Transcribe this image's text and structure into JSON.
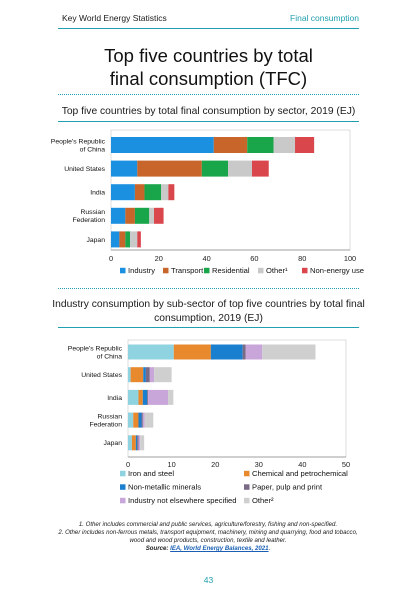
{
  "header": {
    "left": "Key World Energy Statistics",
    "right": "Final consumption"
  },
  "title_lines": [
    "Top five countries by total",
    "final consumption (TFC)"
  ],
  "chart_data": [
    {
      "type": "bar",
      "orientation": "horizontal",
      "stacked": true,
      "title": "Top five countries by total final consumption by sector, 2019 (EJ)",
      "categories": [
        "People's Republic of China",
        "United States",
        "India",
        "Russian Federation",
        "Japan"
      ],
      "category_lines": [
        [
          "People's Republic",
          "of China"
        ],
        [
          "United States"
        ],
        [
          "India"
        ],
        [
          "Russian",
          "Federation"
        ],
        [
          "Japan"
        ]
      ],
      "series": [
        {
          "name": "Industry",
          "color": "#1b8fe0",
          "values": [
            43,
            11,
            10,
            6,
            3.5
          ]
        },
        {
          "name": "Transport",
          "color": "#c8652a",
          "values": [
            14,
            27,
            4,
            4,
            2.5
          ]
        },
        {
          "name": "Residential",
          "color": "#19a64a",
          "values": [
            11,
            11,
            7,
            6,
            2
          ]
        },
        {
          "name": "Other¹",
          "color": "#c9c9c9",
          "values": [
            9,
            10,
            3,
            2,
            3
          ]
        },
        {
          "name": "Non-energy use",
          "color": "#d9464c",
          "values": [
            8,
            7,
            2.5,
            4,
            1.5
          ]
        }
      ],
      "xlim": [
        0,
        100
      ],
      "xticks": [
        0,
        20,
        40,
        60,
        80,
        100
      ],
      "legend_position": "bottom",
      "grid": false
    },
    {
      "type": "bar",
      "orientation": "horizontal",
      "stacked": true,
      "title": "Industry consumption by sub-sector of top five countries by total final consumption, 2019 (EJ)",
      "title_lines": [
        "Industry consumption by sub-sector of top five countries by total final",
        "consumption, 2019 (EJ)"
      ],
      "categories": [
        "People's Republic of China",
        "United States",
        "India",
        "Russian Federation",
        "Japan"
      ],
      "category_lines": [
        [
          "People's Republic",
          "of China"
        ],
        [
          "United States"
        ],
        [
          "India"
        ],
        [
          "Russian",
          "Federation"
        ],
        [
          "Japan"
        ]
      ],
      "series": [
        {
          "name": "Iron and steel",
          "color": "#8fd3e0",
          "values": [
            10.5,
            0.6,
            2.4,
            1.2,
            0.9
          ]
        },
        {
          "name": "Chemical and petrochemical",
          "color": "#e8892e",
          "values": [
            8.5,
            2.9,
            1.0,
            1.2,
            0.9
          ]
        },
        {
          "name": "Non-metallic minerals",
          "color": "#1b7fd0",
          "values": [
            7.3,
            0.6,
            1.0,
            0.7,
            0.3
          ]
        },
        {
          "name": "Paper, pulp and print",
          "color": "#7a6a86",
          "values": [
            0.7,
            0.9,
            0.2,
            0.3,
            0.3
          ]
        },
        {
          "name": "Industry not elsewhere specified",
          "color": "#c9a6d9",
          "values": [
            3.8,
            1.0,
            4.6,
            0.4,
            0.4
          ]
        },
        {
          "name": "Other²",
          "color": "#cfcfcf",
          "values": [
            12.2,
            4.0,
            1.2,
            2.0,
            0.9
          ]
        }
      ],
      "xlim": [
        0,
        50
      ],
      "xticks": [
        0,
        10,
        20,
        30,
        40,
        50
      ],
      "legend_position": "bottom",
      "grid": false
    }
  ],
  "notes": {
    "note1": "1. Other includes commercial and public services, agriculture/forestry, fishing and non-specified.",
    "note2": "2. Other includes non-ferrous metals, transport equipment, machinery, mining and quarrying, food and tobacco, wood and wood products, construction, textile and leather.",
    "source_label": "Source:",
    "source_link": "IEA, World Energy Balances, 2021",
    "source_end": "."
  },
  "page_number": "43"
}
